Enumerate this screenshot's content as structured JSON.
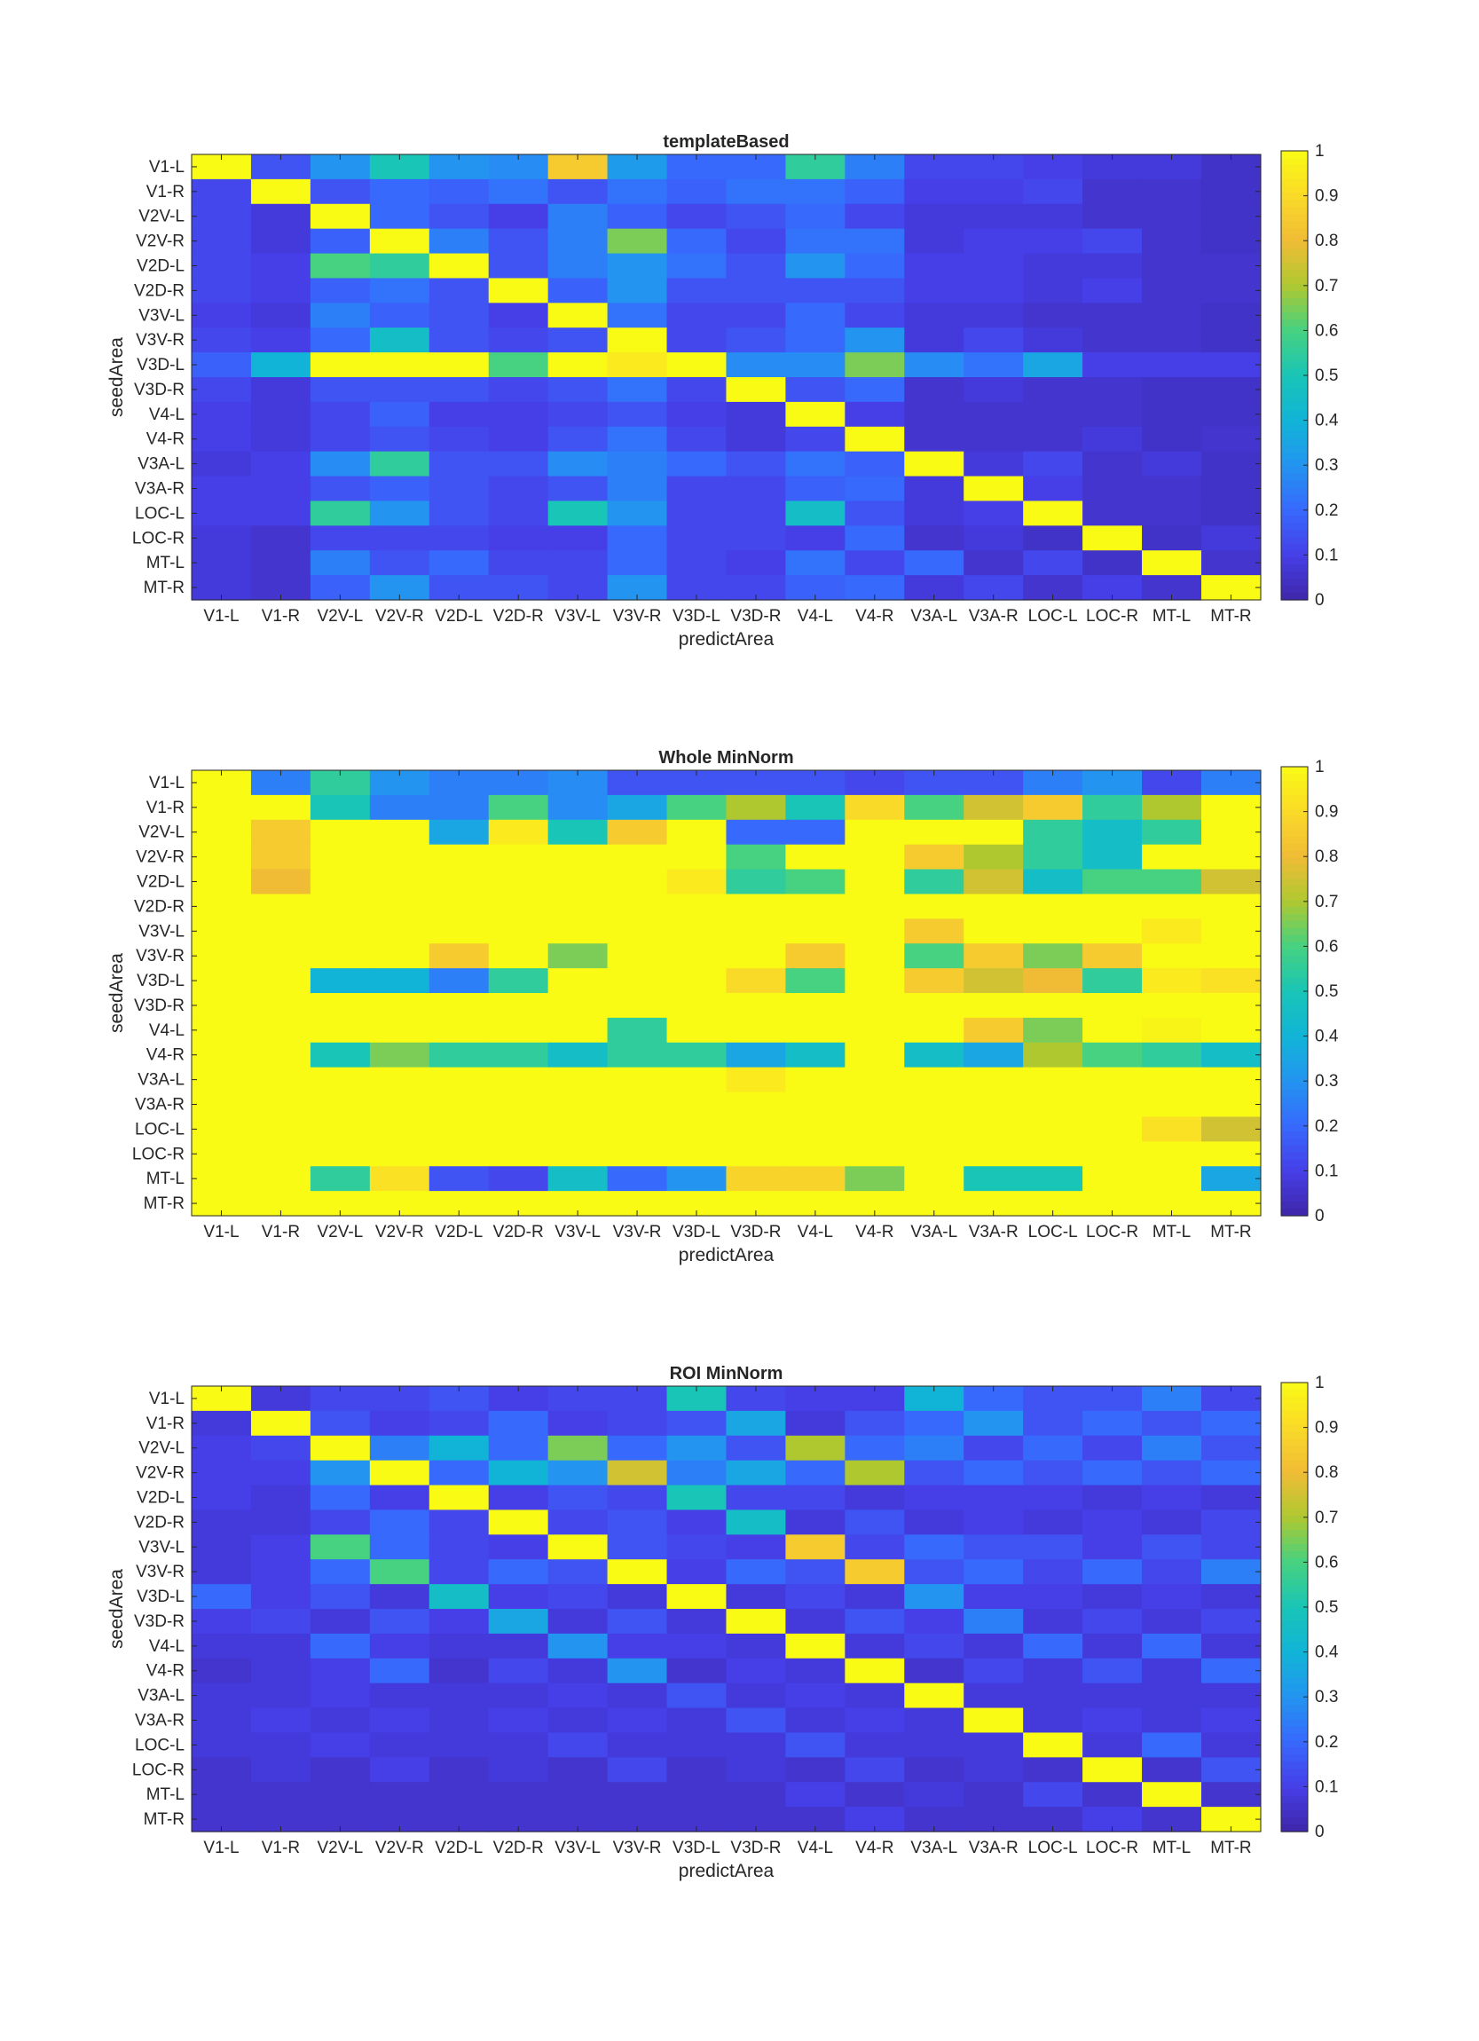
{
  "chart_data": [
    {
      "type": "heatmap",
      "title": "templateBased",
      "xlabel": "predictArea",
      "ylabel": "seedArea",
      "categories": [
        "V1-L",
        "V1-R",
        "V2V-L",
        "V2V-R",
        "V2D-L",
        "V2D-R",
        "V3V-L",
        "V3V-R",
        "V3D-L",
        "V3D-R",
        "V4-L",
        "V4-R",
        "V3A-L",
        "V3A-R",
        "LOC-L",
        "LOC-R",
        "MT-L",
        "MT-R"
      ],
      "clim": [
        0,
        1
      ],
      "colorbar_ticks": [
        "0",
        "0.1",
        "0.2",
        "0.3",
        "0.4",
        "0.5",
        "0.6",
        "0.7",
        "0.8",
        "0.9",
        "1"
      ],
      "values": [
        [
          1.0,
          0.15,
          0.3,
          0.5,
          0.3,
          0.28,
          0.85,
          0.32,
          0.2,
          0.2,
          0.55,
          0.25,
          0.12,
          0.12,
          0.1,
          0.08,
          0.08,
          0.05
        ],
        [
          0.12,
          1.0,
          0.15,
          0.2,
          0.18,
          0.22,
          0.15,
          0.22,
          0.18,
          0.22,
          0.22,
          0.18,
          0.1,
          0.1,
          0.12,
          0.06,
          0.06,
          0.05
        ],
        [
          0.12,
          0.08,
          1.0,
          0.2,
          0.15,
          0.1,
          0.25,
          0.18,
          0.12,
          0.15,
          0.2,
          0.12,
          0.08,
          0.08,
          0.08,
          0.06,
          0.06,
          0.05
        ],
        [
          0.12,
          0.08,
          0.18,
          1.0,
          0.25,
          0.15,
          0.25,
          0.65,
          0.2,
          0.12,
          0.22,
          0.22,
          0.08,
          0.1,
          0.1,
          0.12,
          0.06,
          0.05
        ],
        [
          0.12,
          0.1,
          0.6,
          0.55,
          1.0,
          0.15,
          0.25,
          0.3,
          0.22,
          0.15,
          0.3,
          0.2,
          0.1,
          0.1,
          0.08,
          0.08,
          0.06,
          0.06
        ],
        [
          0.12,
          0.1,
          0.18,
          0.22,
          0.15,
          1.0,
          0.18,
          0.3,
          0.15,
          0.15,
          0.15,
          0.15,
          0.1,
          0.1,
          0.08,
          0.1,
          0.06,
          0.06
        ],
        [
          0.1,
          0.08,
          0.25,
          0.18,
          0.15,
          0.1,
          1.0,
          0.22,
          0.12,
          0.12,
          0.2,
          0.12,
          0.08,
          0.08,
          0.06,
          0.06,
          0.06,
          0.05
        ],
        [
          0.12,
          0.1,
          0.2,
          0.45,
          0.15,
          0.12,
          0.15,
          1.0,
          0.12,
          0.15,
          0.2,
          0.3,
          0.08,
          0.12,
          0.08,
          0.06,
          0.06,
          0.05
        ],
        [
          0.18,
          0.4,
          1.0,
          1.0,
          1.0,
          0.6,
          1.0,
          0.95,
          1.0,
          0.28,
          0.28,
          0.65,
          0.28,
          0.22,
          0.35,
          0.1,
          0.1,
          0.1
        ],
        [
          0.12,
          0.08,
          0.15,
          0.15,
          0.15,
          0.12,
          0.15,
          0.22,
          0.12,
          1.0,
          0.15,
          0.2,
          0.06,
          0.08,
          0.06,
          0.06,
          0.05,
          0.05
        ],
        [
          0.1,
          0.08,
          0.12,
          0.18,
          0.1,
          0.1,
          0.12,
          0.15,
          0.1,
          0.08,
          1.0,
          0.1,
          0.06,
          0.06,
          0.06,
          0.06,
          0.05,
          0.05
        ],
        [
          0.1,
          0.08,
          0.12,
          0.15,
          0.12,
          0.1,
          0.15,
          0.22,
          0.12,
          0.08,
          0.12,
          1.0,
          0.06,
          0.06,
          0.06,
          0.08,
          0.05,
          0.06
        ],
        [
          0.08,
          0.1,
          0.28,
          0.55,
          0.15,
          0.15,
          0.28,
          0.25,
          0.2,
          0.15,
          0.22,
          0.18,
          1.0,
          0.08,
          0.12,
          0.06,
          0.08,
          0.05
        ],
        [
          0.1,
          0.1,
          0.15,
          0.18,
          0.15,
          0.12,
          0.15,
          0.25,
          0.12,
          0.12,
          0.18,
          0.2,
          0.08,
          1.0,
          0.1,
          0.06,
          0.06,
          0.05
        ],
        [
          0.1,
          0.1,
          0.55,
          0.3,
          0.15,
          0.12,
          0.5,
          0.3,
          0.12,
          0.12,
          0.45,
          0.15,
          0.08,
          0.1,
          1.0,
          0.06,
          0.06,
          0.05
        ],
        [
          0.08,
          0.06,
          0.12,
          0.12,
          0.12,
          0.1,
          0.1,
          0.2,
          0.12,
          0.12,
          0.1,
          0.2,
          0.06,
          0.08,
          0.05,
          1.0,
          0.05,
          0.08
        ],
        [
          0.08,
          0.06,
          0.25,
          0.15,
          0.2,
          0.12,
          0.12,
          0.2,
          0.12,
          0.1,
          0.22,
          0.12,
          0.2,
          0.06,
          0.12,
          0.05,
          1.0,
          0.06
        ],
        [
          0.08,
          0.06,
          0.18,
          0.3,
          0.15,
          0.15,
          0.12,
          0.3,
          0.12,
          0.12,
          0.18,
          0.2,
          0.08,
          0.12,
          0.06,
          0.1,
          0.06,
          1.0
        ]
      ]
    },
    {
      "type": "heatmap",
      "title": "Whole MinNorm",
      "xlabel": "predictArea",
      "ylabel": "seedArea",
      "categories": [
        "V1-L",
        "V1-R",
        "V2V-L",
        "V2V-R",
        "V2D-L",
        "V2D-R",
        "V3V-L",
        "V3V-R",
        "V3D-L",
        "V3D-R",
        "V4-L",
        "V4-R",
        "V3A-L",
        "V3A-R",
        "LOC-L",
        "LOC-R",
        "MT-L",
        "MT-R"
      ],
      "clim": [
        0,
        1
      ],
      "colorbar_ticks": [
        "0",
        "0.1",
        "0.2",
        "0.3",
        "0.4",
        "0.5",
        "0.6",
        "0.7",
        "0.8",
        "0.9",
        "1"
      ],
      "values": [
        [
          1.0,
          0.25,
          0.55,
          0.3,
          0.25,
          0.25,
          0.28,
          0.15,
          0.15,
          0.15,
          0.15,
          0.12,
          0.15,
          0.15,
          0.25,
          0.3,
          0.12,
          0.25
        ],
        [
          1.0,
          1.0,
          0.5,
          0.25,
          0.25,
          0.6,
          0.28,
          0.35,
          0.6,
          0.7,
          0.5,
          0.9,
          0.6,
          0.75,
          0.85,
          0.55,
          0.7,
          1.0
        ],
        [
          1.0,
          0.85,
          1.0,
          1.0,
          0.35,
          0.95,
          0.5,
          0.85,
          1.0,
          0.2,
          0.2,
          1.0,
          1.0,
          1.0,
          0.55,
          0.45,
          0.55,
          1.0
        ],
        [
          1.0,
          0.85,
          1.0,
          1.0,
          1.0,
          1.0,
          1.0,
          1.0,
          1.0,
          0.6,
          1.0,
          1.0,
          0.85,
          0.7,
          0.55,
          0.45,
          1.0,
          1.0
        ],
        [
          1.0,
          0.8,
          1.0,
          1.0,
          1.0,
          1.0,
          1.0,
          1.0,
          0.95,
          0.55,
          0.6,
          1.0,
          0.55,
          0.75,
          0.45,
          0.6,
          0.6,
          0.75
        ],
        [
          1.0,
          1.0,
          1.0,
          1.0,
          1.0,
          1.0,
          1.0,
          1.0,
          1.0,
          1.0,
          1.0,
          1.0,
          1.0,
          1.0,
          1.0,
          1.0,
          1.0,
          1.0
        ],
        [
          1.0,
          1.0,
          1.0,
          1.0,
          1.0,
          1.0,
          1.0,
          1.0,
          1.0,
          1.0,
          1.0,
          1.0,
          0.85,
          1.0,
          1.0,
          1.0,
          0.95,
          1.0
        ],
        [
          1.0,
          1.0,
          1.0,
          1.0,
          0.85,
          1.0,
          0.65,
          1.0,
          1.0,
          1.0,
          0.85,
          1.0,
          0.6,
          0.85,
          0.65,
          0.85,
          1.0,
          1.0
        ],
        [
          1.0,
          1.0,
          0.4,
          0.4,
          0.25,
          0.55,
          1.0,
          1.0,
          1.0,
          0.9,
          0.6,
          1.0,
          0.85,
          0.75,
          0.8,
          0.55,
          0.95,
          0.92
        ],
        [
          1.0,
          1.0,
          1.0,
          1.0,
          1.0,
          1.0,
          1.0,
          1.0,
          1.0,
          1.0,
          1.0,
          1.0,
          1.0,
          1.0,
          1.0,
          1.0,
          1.0,
          1.0
        ],
        [
          1.0,
          1.0,
          1.0,
          1.0,
          1.0,
          1.0,
          1.0,
          0.55,
          1.0,
          1.0,
          1.0,
          1.0,
          1.0,
          0.85,
          0.65,
          1.0,
          0.98,
          1.0
        ],
        [
          1.0,
          1.0,
          0.5,
          0.65,
          0.55,
          0.55,
          0.45,
          0.55,
          0.55,
          0.35,
          0.45,
          1.0,
          0.45,
          0.35,
          0.7,
          0.6,
          0.55,
          0.45
        ],
        [
          1.0,
          1.0,
          1.0,
          1.0,
          1.0,
          1.0,
          1.0,
          1.0,
          1.0,
          0.95,
          1.0,
          1.0,
          1.0,
          1.0,
          1.0,
          1.0,
          1.0,
          1.0
        ],
        [
          1.0,
          1.0,
          1.0,
          1.0,
          1.0,
          1.0,
          1.0,
          1.0,
          1.0,
          1.0,
          1.0,
          1.0,
          1.0,
          1.0,
          1.0,
          1.0,
          1.0,
          1.0
        ],
        [
          1.0,
          1.0,
          1.0,
          1.0,
          1.0,
          1.0,
          1.0,
          1.0,
          1.0,
          1.0,
          1.0,
          1.0,
          1.0,
          1.0,
          1.0,
          1.0,
          0.92,
          0.75
        ],
        [
          1.0,
          1.0,
          1.0,
          1.0,
          1.0,
          1.0,
          1.0,
          1.0,
          1.0,
          1.0,
          1.0,
          1.0,
          1.0,
          1.0,
          1.0,
          1.0,
          1.0,
          1.0
        ],
        [
          1.0,
          1.0,
          0.55,
          0.92,
          0.15,
          0.12,
          0.45,
          0.2,
          0.3,
          0.88,
          0.88,
          0.65,
          1.0,
          0.5,
          0.5,
          1.0,
          1.0,
          0.35
        ],
        [
          1.0,
          1.0,
          1.0,
          1.0,
          1.0,
          1.0,
          1.0,
          1.0,
          1.0,
          1.0,
          1.0,
          1.0,
          1.0,
          1.0,
          1.0,
          1.0,
          1.0,
          1.0
        ]
      ]
    },
    {
      "type": "heatmap",
      "title": "ROI MinNorm",
      "xlabel": "predictArea",
      "ylabel": "seedArea",
      "categories": [
        "V1-L",
        "V1-R",
        "V2V-L",
        "V2V-R",
        "V2D-L",
        "V2D-R",
        "V3V-L",
        "V3V-R",
        "V3D-L",
        "V3D-R",
        "V4-L",
        "V4-R",
        "V3A-L",
        "V3A-R",
        "LOC-L",
        "LOC-R",
        "MT-L",
        "MT-R"
      ],
      "clim": [
        0,
        1
      ],
      "colorbar_ticks": [
        "0",
        "0.1",
        "0.2",
        "0.3",
        "0.4",
        "0.5",
        "0.6",
        "0.7",
        "0.8",
        "0.9",
        "1"
      ],
      "values": [
        [
          1.0,
          0.08,
          0.12,
          0.12,
          0.15,
          0.1,
          0.12,
          0.12,
          0.5,
          0.12,
          0.1,
          0.1,
          0.4,
          0.2,
          0.15,
          0.15,
          0.25,
          0.12
        ],
        [
          0.08,
          1.0,
          0.15,
          0.1,
          0.12,
          0.2,
          0.1,
          0.12,
          0.15,
          0.35,
          0.08,
          0.15,
          0.2,
          0.3,
          0.15,
          0.2,
          0.15,
          0.2
        ],
        [
          0.1,
          0.12,
          1.0,
          0.25,
          0.4,
          0.2,
          0.65,
          0.2,
          0.3,
          0.15,
          0.7,
          0.2,
          0.25,
          0.12,
          0.2,
          0.12,
          0.25,
          0.15
        ],
        [
          0.1,
          0.1,
          0.3,
          1.0,
          0.2,
          0.4,
          0.3,
          0.75,
          0.25,
          0.35,
          0.2,
          0.7,
          0.15,
          0.2,
          0.15,
          0.2,
          0.15,
          0.2
        ],
        [
          0.1,
          0.08,
          0.2,
          0.1,
          1.0,
          0.1,
          0.15,
          0.12,
          0.5,
          0.12,
          0.12,
          0.08,
          0.1,
          0.1,
          0.1,
          0.08,
          0.1,
          0.08
        ],
        [
          0.08,
          0.08,
          0.12,
          0.2,
          0.12,
          1.0,
          0.12,
          0.15,
          0.1,
          0.45,
          0.08,
          0.15,
          0.08,
          0.1,
          0.08,
          0.1,
          0.08,
          0.12
        ],
        [
          0.08,
          0.1,
          0.6,
          0.2,
          0.12,
          0.1,
          1.0,
          0.15,
          0.12,
          0.1,
          0.85,
          0.12,
          0.2,
          0.15,
          0.15,
          0.1,
          0.15,
          0.12
        ],
        [
          0.08,
          0.1,
          0.2,
          0.6,
          0.12,
          0.2,
          0.15,
          1.0,
          0.1,
          0.2,
          0.15,
          0.85,
          0.15,
          0.2,
          0.12,
          0.2,
          0.12,
          0.25
        ],
        [
          0.2,
          0.1,
          0.15,
          0.08,
          0.45,
          0.1,
          0.12,
          0.08,
          1.0,
          0.08,
          0.12,
          0.08,
          0.3,
          0.1,
          0.1,
          0.08,
          0.1,
          0.08
        ],
        [
          0.1,
          0.12,
          0.08,
          0.15,
          0.1,
          0.35,
          0.08,
          0.15,
          0.08,
          1.0,
          0.08,
          0.15,
          0.1,
          0.25,
          0.08,
          0.12,
          0.08,
          0.12
        ],
        [
          0.08,
          0.08,
          0.2,
          0.1,
          0.08,
          0.08,
          0.3,
          0.1,
          0.1,
          0.08,
          1.0,
          0.08,
          0.12,
          0.08,
          0.2,
          0.08,
          0.2,
          0.08
        ],
        [
          0.06,
          0.08,
          0.1,
          0.2,
          0.06,
          0.12,
          0.08,
          0.3,
          0.06,
          0.1,
          0.08,
          1.0,
          0.06,
          0.12,
          0.08,
          0.15,
          0.08,
          0.2
        ],
        [
          0.08,
          0.08,
          0.1,
          0.08,
          0.08,
          0.08,
          0.1,
          0.08,
          0.15,
          0.08,
          0.1,
          0.08,
          1.0,
          0.08,
          0.08,
          0.08,
          0.08,
          0.08
        ],
        [
          0.08,
          0.1,
          0.08,
          0.1,
          0.08,
          0.1,
          0.08,
          0.1,
          0.08,
          0.15,
          0.08,
          0.1,
          0.08,
          1.0,
          0.08,
          0.1,
          0.08,
          0.1
        ],
        [
          0.08,
          0.08,
          0.1,
          0.08,
          0.08,
          0.08,
          0.12,
          0.08,
          0.08,
          0.08,
          0.15,
          0.08,
          0.08,
          0.08,
          1.0,
          0.08,
          0.2,
          0.08
        ],
        [
          0.06,
          0.08,
          0.06,
          0.1,
          0.06,
          0.08,
          0.06,
          0.12,
          0.06,
          0.08,
          0.06,
          0.12,
          0.06,
          0.08,
          0.06,
          1.0,
          0.06,
          0.15
        ],
        [
          0.06,
          0.06,
          0.06,
          0.06,
          0.06,
          0.06,
          0.06,
          0.06,
          0.06,
          0.06,
          0.1,
          0.06,
          0.08,
          0.06,
          0.12,
          0.06,
          1.0,
          0.06
        ],
        [
          0.06,
          0.06,
          0.06,
          0.06,
          0.06,
          0.06,
          0.06,
          0.06,
          0.06,
          0.06,
          0.06,
          0.1,
          0.06,
          0.06,
          0.06,
          0.1,
          0.06,
          1.0
        ]
      ]
    }
  ]
}
